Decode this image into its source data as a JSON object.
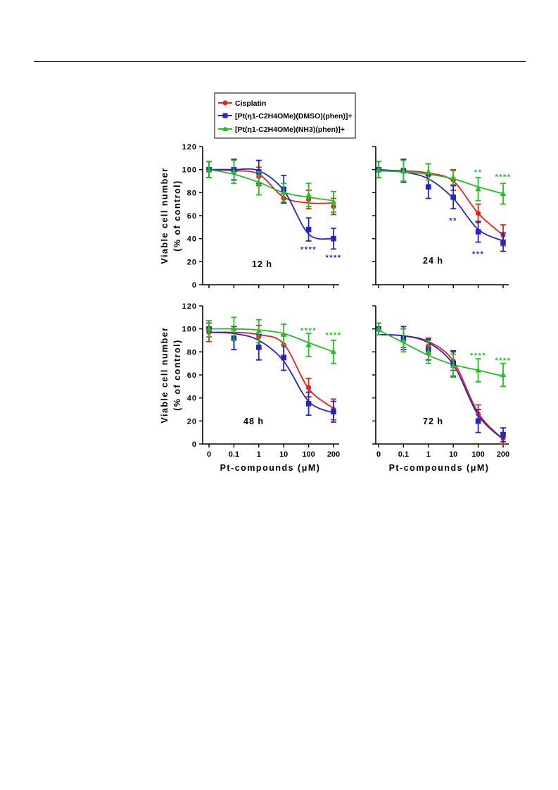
{
  "legend": {
    "items": [
      {
        "label": "Cisplatin",
        "color": "#e8201e",
        "marker": "circle"
      },
      {
        "label": "[Pt(η1-C2H4OMe)(DMSO)(phen)]+",
        "color": "#2424c8",
        "marker": "square"
      },
      {
        "label": "[Pt(η1-C2H4OMe)(NH3)(phen)]+",
        "color": "#22c022",
        "marker": "triangle"
      }
    ]
  },
  "axes": {
    "ylabel_line1": "Viable cell number",
    "ylabel_line2": "(% of control)",
    "xlabel": "Pt-compounds (μM)",
    "ylim": [
      0,
      120
    ],
    "yticks": [
      0,
      20,
      40,
      60,
      80,
      100,
      120
    ],
    "xtick_labels": [
      "0",
      "0.1",
      "1",
      "10",
      "100",
      "200"
    ]
  },
  "chart_data": [
    {
      "type": "line",
      "title": "12 h",
      "categories": [
        "0",
        "0.1",
        "1",
        "10",
        "100",
        "200"
      ],
      "series": [
        {
          "name": "Cisplatin",
          "color": "#e8201e",
          "marker": "circle",
          "values": [
            100,
            100,
            94,
            75,
            74,
            68
          ],
          "errors": [
            7,
            9,
            8,
            4,
            8,
            7
          ],
          "fit": [
            100,
            99,
            96,
            76,
            71,
            71
          ]
        },
        {
          "name": "[Pt(η1-C2H4OMe)(DMSO)(phen)]+",
          "color": "#2424c8",
          "marker": "square",
          "values": [
            100,
            100,
            98,
            83,
            48,
            40
          ],
          "errors": [
            7,
            9,
            10,
            12,
            10,
            9
          ],
          "fit": [
            100,
            100,
            99,
            82,
            44,
            40
          ]
        },
        {
          "name": "[Pt(η1-C2H4OMe)(NH3)(phen)]+",
          "color": "#22c022",
          "marker": "triangle",
          "values": [
            100,
            98,
            88,
            80,
            78,
            72
          ],
          "errors": [
            7,
            10,
            10,
            8,
            10,
            9
          ],
          "fit": [
            100,
            96,
            89,
            80,
            76,
            73
          ]
        }
      ],
      "annotations": [
        {
          "text": "****",
          "category": "100",
          "y": 31,
          "color": "#2424c8"
        },
        {
          "text": "****",
          "category": "200",
          "y": 24,
          "color": "#2424c8"
        }
      ]
    },
    {
      "type": "line",
      "title": "24 h",
      "categories": [
        "0",
        "0.1",
        "1",
        "10",
        "100",
        "200"
      ],
      "series": [
        {
          "name": "Cisplatin",
          "color": "#e8201e",
          "marker": "circle",
          "values": [
            100,
            99,
            95,
            91,
            62,
            43
          ],
          "errors": [
            7,
            10,
            10,
            9,
            8,
            9
          ],
          "fit": [
            99,
            99,
            97,
            90,
            62,
            43
          ]
        },
        {
          "name": "[Pt(η1-C2H4OMe)(DMSO)(phen)]+",
          "color": "#2424c8",
          "marker": "square",
          "values": [
            100,
            99,
            85,
            76,
            46,
            37
          ],
          "errors": [
            7,
            10,
            10,
            10,
            9,
            8
          ],
          "fit": [
            100,
            98,
            92,
            75,
            48,
            38
          ]
        },
        {
          "name": "[Pt(η1-C2H4OMe)(NH3)(phen)]+",
          "color": "#22c022",
          "marker": "triangle",
          "values": [
            100,
            99,
            98,
            93,
            83,
            79
          ],
          "errors": [
            7,
            9,
            7,
            6,
            10,
            9
          ],
          "fit": [
            99,
            98,
            96,
            92,
            85,
            79
          ]
        }
      ],
      "annotations": [
        {
          "text": "**",
          "category": "10",
          "y": 56,
          "color": "#2424c8"
        },
        {
          "text": "***",
          "category": "100",
          "y": 27,
          "color": "#2424c8"
        },
        {
          "text": "**",
          "category": "100",
          "y": 98,
          "color": "#22c022"
        },
        {
          "text": "****",
          "category": "200",
          "y": 94,
          "color": "#22c022"
        }
      ]
    },
    {
      "type": "line",
      "title": "48 h",
      "categories": [
        "0",
        "0.1",
        "1",
        "10",
        "100",
        "200"
      ],
      "series": [
        {
          "name": "Cisplatin",
          "color": "#e8201e",
          "marker": "circle",
          "values": [
            97,
            91,
            93,
            86,
            49,
            30
          ],
          "errors": [
            8,
            9,
            10,
            9,
            8,
            9
          ],
          "fit": [
            97,
            97,
            95,
            87,
            48,
            31
          ]
        },
        {
          "name": "[Pt(η1-C2H4OMe)(DMSO)(phen)]+",
          "color": "#2424c8",
          "marker": "square",
          "values": [
            100,
            92,
            84,
            75,
            35,
            28
          ],
          "errors": [
            7,
            10,
            11,
            11,
            10,
            9
          ],
          "fit": [
            97,
            96,
            90,
            72,
            37,
            27
          ]
        },
        {
          "name": "[Pt(η1-C2H4OMe)(NH3)(phen)]+",
          "color": "#22c022",
          "marker": "triangle",
          "values": [
            100,
            100,
            98,
            95,
            86,
            80
          ],
          "errors": [
            7,
            10,
            10,
            9,
            10,
            10
          ],
          "fit": [
            100,
            100,
            99,
            96,
            88,
            80
          ]
        }
      ],
      "annotations": [
        {
          "text": "****",
          "category": "100",
          "y": 99,
          "color": "#22c022"
        },
        {
          "text": "****",
          "category": "200",
          "y": 95,
          "color": "#22c022"
        }
      ]
    },
    {
      "type": "line",
      "title": "72 h",
      "categories": [
        "0",
        "0.1",
        "1",
        "10",
        "100",
        "200"
      ],
      "series": [
        {
          "name": "Cisplatin",
          "color": "#e8201e",
          "marker": "circle",
          "values": [
            100,
            92,
            85,
            72,
            26,
            5
          ],
          "errors": [
            5,
            8,
            7,
            8,
            8,
            5
          ],
          "fit": [
            95,
            94,
            89,
            72,
            27,
            4
          ]
        },
        {
          "name": "[Pt(η1-C2H4OMe)(DMSO)(phen)]+",
          "color": "#2424c8",
          "marker": "square",
          "values": [
            100,
            92,
            82,
            70,
            20,
            8
          ],
          "errors": [
            5,
            10,
            9,
            11,
            10,
            6
          ],
          "fit": [
            95,
            94,
            88,
            69,
            25,
            4
          ]
        },
        {
          "name": "[Pt(η1-C2H4OMe)(NH3)(phen)]+",
          "color": "#22c022",
          "marker": "triangle",
          "values": [
            100,
            90,
            80,
            68,
            64,
            60
          ],
          "errors": [
            5,
            10,
            10,
            10,
            10,
            10
          ],
          "fit": [
            99,
            88,
            77,
            69,
            64,
            59
          ]
        }
      ],
      "annotations": [
        {
          "text": "****",
          "category": "100",
          "y": 77,
          "color": "#22c022"
        },
        {
          "text": "****",
          "category": "200",
          "y": 73,
          "color": "#22c022"
        }
      ]
    }
  ]
}
